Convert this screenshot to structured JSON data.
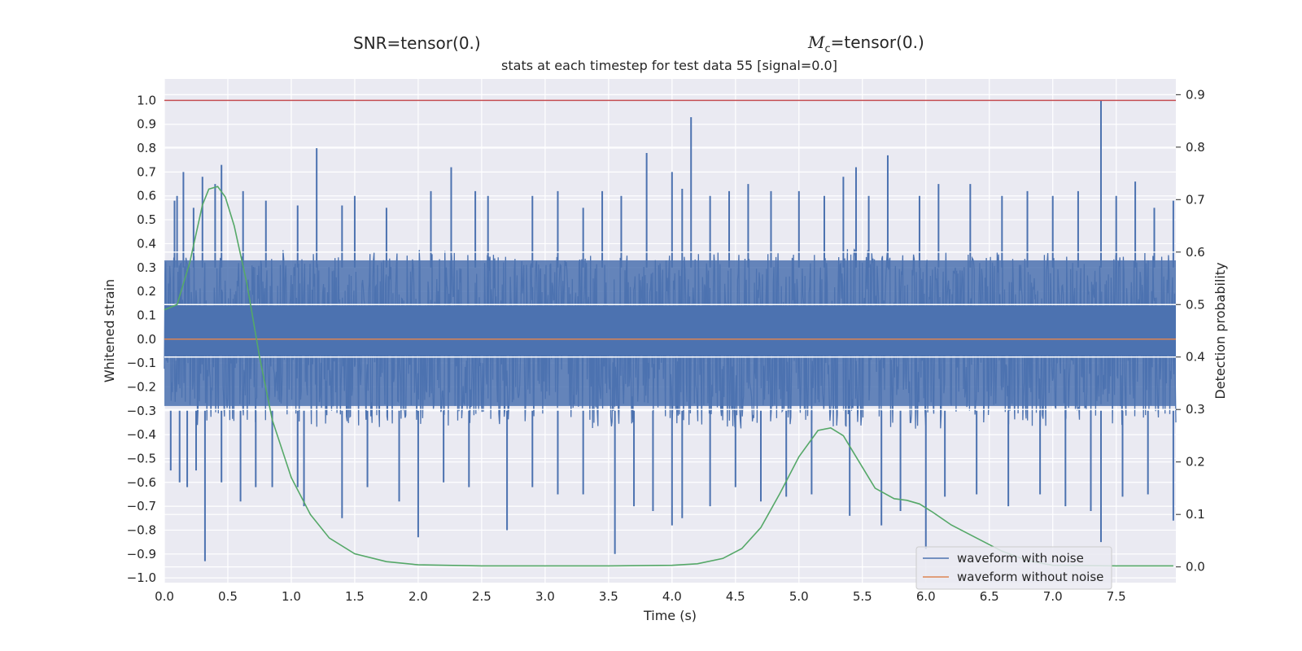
{
  "header": {
    "snr_label": "SNR=tensor(0.)",
    "mc_symbol": "M",
    "mc_subscript": "c",
    "mc_value": "=tensor(0.)",
    "subtitle": "stats at each timestep for test data 55 [signal=0.0]"
  },
  "chart_data": {
    "type": "line",
    "xlabel": "Time (s)",
    "ylabel_left": "Whitened strain",
    "ylabel_right": "Detection probability",
    "xlim": [
      0.0,
      7.97
    ],
    "ylim_left": [
      -1.02,
      1.09
    ],
    "ylim_right": [
      -0.03,
      0.93
    ],
    "x_ticks": [
      "0.0",
      "0.5",
      "1.0",
      "1.5",
      "2.0",
      "2.5",
      "3.0",
      "3.5",
      "4.0",
      "4.5",
      "5.0",
      "5.5",
      "6.0",
      "6.5",
      "7.0",
      "7.5"
    ],
    "y_ticks_left": [
      "1.0",
      "0.9",
      "0.8",
      "0.7",
      "0.6",
      "0.5",
      "0.4",
      "0.3",
      "0.2",
      "0.1",
      "0.0",
      "−0.1",
      "−0.2",
      "−0.3",
      "−0.4",
      "−0.5",
      "−0.6",
      "−0.7",
      "−0.8",
      "−0.9",
      "−1.0"
    ],
    "y_ticks_right": [
      "0.9",
      "0.8",
      "0.7",
      "0.6",
      "0.5",
      "0.4",
      "0.3",
      "0.2",
      "0.1",
      "0.0"
    ],
    "threshold": 1.0,
    "grid": true,
    "legend_position": "bottom-right",
    "series": [
      {
        "name": "waveform with noise",
        "color": "#4c72b0",
        "axis": "left",
        "band_top": [
          [
            0.0,
            0.35
          ],
          [
            0.5,
            0.35
          ],
          [
            1.0,
            0.38
          ],
          [
            1.5,
            0.36
          ],
          [
            2.0,
            0.38
          ],
          [
            2.5,
            0.37
          ],
          [
            3.0,
            0.35
          ],
          [
            3.5,
            0.36
          ],
          [
            4.0,
            0.38
          ],
          [
            4.5,
            0.36
          ],
          [
            5.0,
            0.37
          ],
          [
            5.5,
            0.38
          ],
          [
            6.0,
            0.36
          ],
          [
            6.5,
            0.37
          ],
          [
            7.0,
            0.36
          ],
          [
            7.5,
            0.37
          ],
          [
            7.97,
            0.35
          ]
        ],
        "band_bottom": [
          [
            0.0,
            -0.35
          ],
          [
            0.5,
            -0.37
          ],
          [
            1.0,
            -0.36
          ],
          [
            1.5,
            -0.38
          ],
          [
            2.0,
            -0.37
          ],
          [
            2.5,
            -0.36
          ],
          [
            3.0,
            -0.38
          ],
          [
            3.5,
            -0.37
          ],
          [
            4.0,
            -0.36
          ],
          [
            4.5,
            -0.38
          ],
          [
            5.0,
            -0.36
          ],
          [
            5.5,
            -0.37
          ],
          [
            6.0,
            -0.38
          ],
          [
            6.5,
            -0.36
          ],
          [
            7.0,
            -0.37
          ],
          [
            7.5,
            -0.36
          ],
          [
            7.97,
            -0.35
          ]
        ],
        "peaks": [
          [
            0.08,
            0.58
          ],
          [
            0.1,
            0.6
          ],
          [
            0.15,
            0.7
          ],
          [
            0.23,
            0.55
          ],
          [
            0.3,
            0.68
          ],
          [
            0.4,
            0.65
          ],
          [
            0.45,
            0.73
          ],
          [
            0.62,
            0.62
          ],
          [
            0.8,
            0.58
          ],
          [
            1.05,
            0.56
          ],
          [
            1.2,
            0.8
          ],
          [
            1.4,
            0.56
          ],
          [
            1.5,
            0.6
          ],
          [
            1.75,
            0.55
          ],
          [
            2.1,
            0.62
          ],
          [
            2.26,
            0.72
          ],
          [
            2.45,
            0.62
          ],
          [
            2.55,
            0.6
          ],
          [
            2.9,
            0.6
          ],
          [
            3.1,
            0.62
          ],
          [
            3.3,
            0.55
          ],
          [
            3.45,
            0.62
          ],
          [
            3.6,
            0.6
          ],
          [
            3.8,
            0.78
          ],
          [
            4.0,
            0.7
          ],
          [
            4.08,
            0.63
          ],
          [
            4.15,
            0.93
          ],
          [
            4.3,
            0.6
          ],
          [
            4.45,
            0.62
          ],
          [
            4.6,
            0.65
          ],
          [
            4.78,
            0.62
          ],
          [
            5.0,
            0.62
          ],
          [
            5.2,
            0.6
          ],
          [
            5.35,
            0.68
          ],
          [
            5.45,
            0.72
          ],
          [
            5.55,
            0.6
          ],
          [
            5.7,
            0.77
          ],
          [
            5.95,
            0.6
          ],
          [
            6.1,
            0.65
          ],
          [
            6.35,
            0.65
          ],
          [
            6.6,
            0.6
          ],
          [
            6.8,
            0.62
          ],
          [
            7.0,
            0.6
          ],
          [
            7.2,
            0.62
          ],
          [
            7.38,
            1.0
          ],
          [
            7.5,
            0.6
          ],
          [
            7.65,
            0.66
          ],
          [
            7.8,
            0.55
          ],
          [
            7.95,
            0.58
          ]
        ],
        "troughs": [
          [
            0.05,
            -0.55
          ],
          [
            0.12,
            -0.6
          ],
          [
            0.18,
            -0.62
          ],
          [
            0.25,
            -0.55
          ],
          [
            0.32,
            -0.93
          ],
          [
            0.45,
            -0.6
          ],
          [
            0.6,
            -0.68
          ],
          [
            0.72,
            -0.62
          ],
          [
            0.85,
            -0.62
          ],
          [
            1.05,
            -0.62
          ],
          [
            1.1,
            -0.7
          ],
          [
            1.4,
            -0.75
          ],
          [
            1.6,
            -0.62
          ],
          [
            1.85,
            -0.68
          ],
          [
            2.0,
            -0.83
          ],
          [
            2.2,
            -0.6
          ],
          [
            2.4,
            -0.62
          ],
          [
            2.7,
            -0.8
          ],
          [
            2.9,
            -0.62
          ],
          [
            3.1,
            -0.65
          ],
          [
            3.3,
            -0.65
          ],
          [
            3.55,
            -0.9
          ],
          [
            3.7,
            -0.7
          ],
          [
            3.85,
            -0.72
          ],
          [
            4.0,
            -0.78
          ],
          [
            4.08,
            -0.75
          ],
          [
            4.3,
            -0.7
          ],
          [
            4.5,
            -0.62
          ],
          [
            4.7,
            -0.68
          ],
          [
            4.9,
            -0.66
          ],
          [
            5.1,
            -0.65
          ],
          [
            5.4,
            -0.74
          ],
          [
            5.65,
            -0.78
          ],
          [
            5.8,
            -0.72
          ],
          [
            6.0,
            -0.88
          ],
          [
            6.15,
            -0.66
          ],
          [
            6.4,
            -0.65
          ],
          [
            6.65,
            -0.7
          ],
          [
            6.9,
            -0.65
          ],
          [
            7.1,
            -0.7
          ],
          [
            7.3,
            -0.72
          ],
          [
            7.38,
            -0.85
          ],
          [
            7.55,
            -0.66
          ],
          [
            7.75,
            -0.65
          ],
          [
            7.95,
            -0.76
          ]
        ]
      },
      {
        "name": "waveform without noise",
        "color": "#dd8452",
        "axis": "left",
        "x": [
          0.0,
          7.97
        ],
        "y": [
          0.0,
          0.0
        ]
      },
      {
        "name": "",
        "color": "#55a868",
        "axis": "right",
        "x": [
          0.0,
          0.1,
          0.2,
          0.3,
          0.35,
          0.42,
          0.48,
          0.55,
          0.65,
          0.75,
          0.85,
          1.0,
          1.15,
          1.3,
          1.5,
          1.75,
          2.0,
          2.5,
          3.0,
          3.5,
          4.0,
          4.2,
          4.4,
          4.55,
          4.7,
          4.85,
          5.0,
          5.15,
          5.25,
          5.35,
          5.45,
          5.6,
          5.75,
          5.85,
          5.95,
          6.05,
          6.2,
          6.4,
          6.6,
          6.8,
          7.0,
          7.5,
          7.95
        ],
        "y": [
          0.49,
          0.5,
          0.58,
          0.69,
          0.72,
          0.725,
          0.705,
          0.65,
          0.54,
          0.4,
          0.28,
          0.17,
          0.1,
          0.055,
          0.025,
          0.01,
          0.004,
          0.002,
          0.002,
          0.002,
          0.003,
          0.006,
          0.016,
          0.035,
          0.075,
          0.14,
          0.21,
          0.26,
          0.265,
          0.25,
          0.21,
          0.15,
          0.13,
          0.127,
          0.12,
          0.105,
          0.08,
          0.055,
          0.03,
          0.012,
          0.003,
          0.002,
          0.002
        ]
      }
    ]
  }
}
